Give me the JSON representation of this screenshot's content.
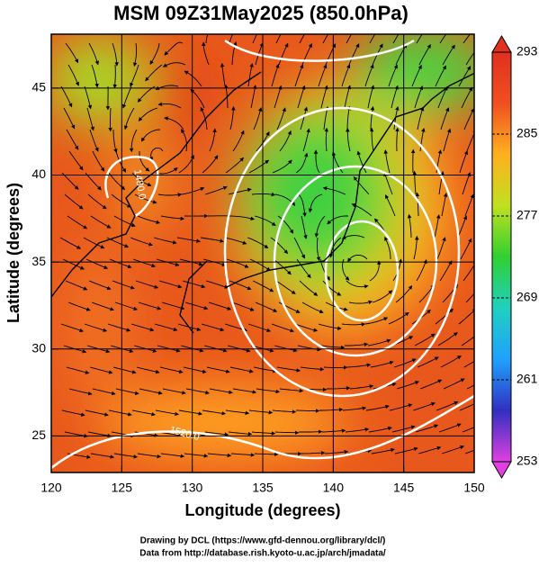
{
  "chart_data": {
    "type": "map",
    "title": "MSM 09Z31May2025 (850.0hPa)",
    "x_label": "Longitude (degrees)",
    "y_label": "Latitude  (degrees)",
    "xlim": [
      120,
      150
    ],
    "ylim": [
      22.9,
      48.1
    ],
    "xticks": [
      120,
      125,
      130,
      135,
      140,
      145,
      150
    ],
    "yticks": [
      25,
      30,
      35,
      40,
      45
    ],
    "grid": true,
    "colorbar": {
      "lim": [
        253,
        293
      ],
      "ticks": [
        253,
        261,
        269,
        277,
        285,
        293
      ],
      "colors": [
        "#e040e0",
        "#3030c0",
        "#20a0ff",
        "#20d0c0",
        "#30d030",
        "#c0e020",
        "#ffb020",
        "#f05020",
        "#e03020"
      ]
    },
    "contour_labels": [
      "1480.0",
      "1520.0"
    ],
    "credits": [
      "Drawing by DCL (https://www.gfd-dennou.org/library/dcl/)",
      "Data from http://database.rish.kyoto-u.ac.jp/arch/jmadata/"
    ]
  }
}
